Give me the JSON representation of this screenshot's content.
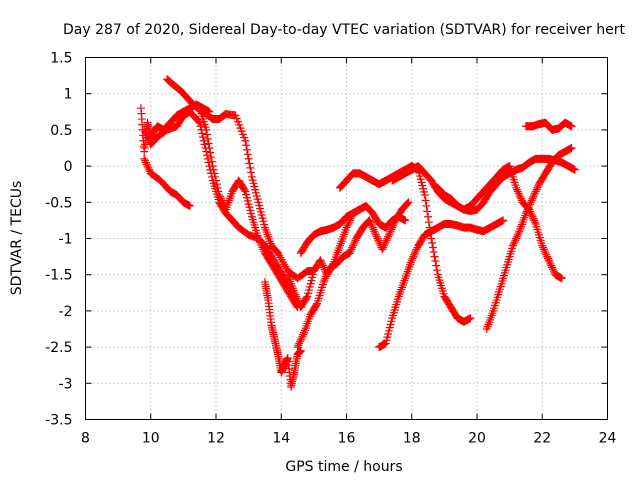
{
  "chart_data": {
    "type": "scatter",
    "title": "Day 287 of 2020, Sidereal Day-to-day VTEC variation (SDTVAR) for receiver hert",
    "xlabel": "GPS time / hours",
    "ylabel": "SDTVAR / TECUs",
    "xlim": [
      8,
      24
    ],
    "ylim": [
      -3.5,
      1.5
    ],
    "x_ticks": [
      8,
      10,
      12,
      14,
      16,
      18,
      20,
      22,
      24
    ],
    "y_ticks": [
      -3.5,
      -3,
      -2.5,
      -2,
      -1.5,
      -1,
      -0.5,
      0,
      0.5,
      1,
      1.5
    ],
    "x_tick_labels": [
      "8",
      "10",
      "12",
      "14",
      "16",
      "18",
      "20",
      "22",
      "24"
    ],
    "y_tick_labels": [
      "-3.5",
      "-3",
      "-2.5",
      "-2",
      "-1.5",
      "-1",
      "-0.5",
      "0",
      "0.5",
      "1",
      "1.5"
    ],
    "grid": true,
    "marker": "+",
    "color": "#ff0000",
    "series": [
      {
        "x": [
          9.8,
          10.0,
          10.3,
          10.6,
          10.8,
          11.0,
          11.2
        ],
        "y": [
          0.1,
          -0.1,
          -0.2,
          -0.35,
          -0.4,
          -0.5,
          -0.55
        ]
      },
      {
        "x": [
          9.7,
          9.8,
          9.9,
          10.0,
          10.2,
          10.4,
          10.6,
          10.8,
          11.0,
          11.2,
          11.4,
          11.6,
          11.8
        ],
        "y": [
          0.8,
          0.2,
          0.6,
          0.4,
          0.55,
          0.5,
          0.6,
          0.7,
          0.75,
          0.8,
          0.85,
          0.8,
          0.75
        ]
      },
      {
        "x": [
          10.5,
          10.7,
          10.9,
          11.1,
          11.3,
          11.5,
          11.7,
          11.9,
          12.1,
          12.3,
          12.6,
          12.9,
          13.1,
          13.3,
          13.5,
          13.7,
          13.9,
          14.2,
          14.5,
          14.8,
          15.0
        ],
        "y": [
          1.2,
          1.12,
          1.05,
          0.95,
          0.85,
          0.78,
          0.72,
          0.65,
          0.65,
          0.72,
          0.7,
          0.35,
          -0.15,
          -0.5,
          -0.85,
          -1.1,
          -1.2,
          -1.45,
          -1.55,
          -1.45,
          -1.45
        ]
      },
      {
        "x": [
          9.8,
          10.0,
          10.2,
          10.5,
          10.8,
          11.0,
          11.2,
          11.5,
          11.7,
          11.9,
          12.1,
          12.3,
          12.5,
          12.7,
          13.0,
          13.3,
          13.5,
          13.7,
          13.9,
          14.1,
          14.3,
          14.5
        ],
        "y": [
          0.5,
          0.3,
          0.4,
          0.5,
          0.55,
          0.7,
          0.75,
          0.6,
          0.2,
          -0.2,
          -0.5,
          -0.65,
          -0.75,
          -0.85,
          -0.95,
          -1.0,
          -1.2,
          -1.35,
          -1.5,
          -1.65,
          -1.8,
          -1.95
        ]
      },
      {
        "x": [
          11.5,
          11.7,
          11.9,
          12.1,
          12.3,
          12.5,
          12.7,
          12.9,
          13.1,
          13.3,
          13.5,
          13.7,
          13.9,
          14.1,
          14.3,
          14.5
        ],
        "y": [
          0.8,
          0.5,
          0.0,
          -0.4,
          -0.6,
          -0.35,
          -0.2,
          -0.35,
          -0.7,
          -1.0,
          -1.1,
          -1.25,
          -1.4,
          -1.55,
          -1.75,
          -1.9
        ]
      },
      {
        "x": [
          13.5,
          13.6,
          13.7,
          13.8,
          13.9,
          14.0,
          14.1,
          14.2,
          14.3,
          14.4,
          14.5,
          14.6
        ],
        "y": [
          -1.6,
          -1.85,
          -2.2,
          -2.4,
          -2.6,
          -2.85,
          -2.75,
          -2.65,
          -3.05,
          -2.85,
          -2.6,
          -2.55
        ]
      },
      {
        "x": [
          14.2,
          14.4,
          14.6,
          14.8,
          15.0,
          15.2,
          15.4,
          15.6,
          15.8,
          16.0,
          16.2,
          16.4,
          16.6,
          16.8,
          17.0,
          17.2,
          17.4,
          17.6,
          17.8
        ],
        "y": [
          -1.5,
          -1.75,
          -1.95,
          -1.8,
          -1.45,
          -1.3,
          -1.5,
          -1.35,
          -1.1,
          -0.85,
          -0.65,
          -0.6,
          -0.55,
          -0.65,
          -0.8,
          -0.85,
          -0.75,
          -0.7,
          -0.75
        ]
      },
      {
        "x": [
          14.5,
          14.7,
          14.9,
          15.1,
          15.3,
          15.5,
          15.7,
          15.9,
          16.1,
          16.3,
          16.5,
          16.7,
          16.9,
          17.1,
          17.3,
          17.5,
          17.7,
          17.9
        ],
        "y": [
          -2.5,
          -2.3,
          -2.05,
          -1.9,
          -1.6,
          -1.4,
          -1.35,
          -1.25,
          -1.2,
          -1.0,
          -0.85,
          -0.75,
          -0.95,
          -1.15,
          -0.95,
          -0.75,
          -0.6,
          -0.5
        ]
      },
      {
        "x": [
          14.6,
          14.8,
          15.0,
          15.2,
          15.4,
          15.6,
          15.8,
          16.0,
          16.2,
          16.4
        ],
        "y": [
          -1.2,
          -1.05,
          -0.95,
          -0.9,
          -0.88,
          -0.85,
          -0.8,
          -0.7,
          -0.65,
          -0.6
        ]
      },
      {
        "x": [
          15.8,
          16.0,
          16.2,
          16.4,
          16.6,
          16.8,
          17.0,
          17.2,
          17.4,
          17.6,
          17.8,
          18.0,
          18.2,
          18.4,
          18.6,
          18.8,
          19.0,
          19.2,
          19.4,
          19.6,
          19.8
        ],
        "y": [
          -0.3,
          -0.2,
          -0.1,
          -0.1,
          -0.15,
          -0.2,
          -0.25,
          -0.2,
          -0.15,
          -0.1,
          -0.05,
          0.0,
          -0.05,
          -0.4,
          -1.0,
          -1.5,
          -1.8,
          -1.95,
          -2.1,
          -2.15,
          -2.1
        ]
      },
      {
        "x": [
          17.0,
          17.2,
          17.4,
          17.6,
          17.8,
          18.0,
          18.2,
          18.4,
          18.6,
          18.8,
          19.0,
          19.2,
          19.4,
          19.6,
          19.8,
          20.0,
          20.2,
          20.4,
          20.6,
          20.8
        ],
        "y": [
          -2.5,
          -2.45,
          -2.1,
          -1.8,
          -1.55,
          -1.3,
          -1.1,
          -0.95,
          -0.9,
          -0.85,
          -0.8,
          -0.8,
          -0.82,
          -0.85,
          -0.85,
          -0.88,
          -0.9,
          -0.85,
          -0.8,
          -0.75
        ]
      },
      {
        "x": [
          17.4,
          17.6,
          17.8,
          18.0,
          18.2,
          18.4,
          18.6,
          18.8,
          19.0,
          19.2,
          19.4,
          19.6,
          19.8,
          20.0,
          20.2,
          20.4,
          20.6,
          20.8,
          21.0,
          21.2,
          21.4,
          21.6,
          21.8,
          22.0,
          22.2,
          22.4,
          22.6,
          22.8,
          23.0
        ],
        "y": [
          -0.2,
          -0.15,
          -0.1,
          -0.05,
          0.0,
          -0.1,
          -0.2,
          -0.35,
          -0.45,
          -0.5,
          -0.55,
          -0.6,
          -0.62,
          -0.6,
          -0.5,
          -0.35,
          -0.25,
          -0.15,
          -0.1,
          -0.05,
          -0.02,
          0.05,
          0.1,
          0.1,
          0.1,
          0.08,
          0.05,
          0.0,
          -0.05
        ]
      },
      {
        "x": [
          18.8,
          19.0,
          19.2,
          19.4,
          19.6,
          19.8,
          20.0,
          20.2,
          20.4,
          20.6,
          20.8,
          21.0,
          21.2,
          21.4,
          21.6,
          21.8,
          22.0,
          22.2,
          22.4,
          22.6
        ],
        "y": [
          -0.3,
          -0.4,
          -0.45,
          -0.55,
          -0.6,
          -0.55,
          -0.45,
          -0.35,
          -0.25,
          -0.15,
          -0.05,
          0.0,
          -0.3,
          -0.5,
          -0.6,
          -0.8,
          -1.1,
          -1.3,
          -1.5,
          -1.55
        ]
      },
      {
        "x": [
          20.3,
          20.5,
          20.7,
          20.9,
          21.1,
          21.3,
          21.5,
          21.7,
          21.9,
          22.1,
          22.3,
          22.5,
          22.7,
          22.9
        ],
        "y": [
          -2.25,
          -2.0,
          -1.7,
          -1.4,
          -1.1,
          -0.9,
          -0.65,
          -0.45,
          -0.25,
          -0.1,
          0.05,
          0.15,
          0.2,
          0.25
        ]
      },
      {
        "x": [
          21.5,
          21.7,
          21.9,
          22.1,
          22.3,
          22.5,
          22.7,
          22.9
        ],
        "y": [
          0.55,
          0.55,
          0.58,
          0.6,
          0.5,
          0.52,
          0.6,
          0.55
        ]
      }
    ]
  }
}
